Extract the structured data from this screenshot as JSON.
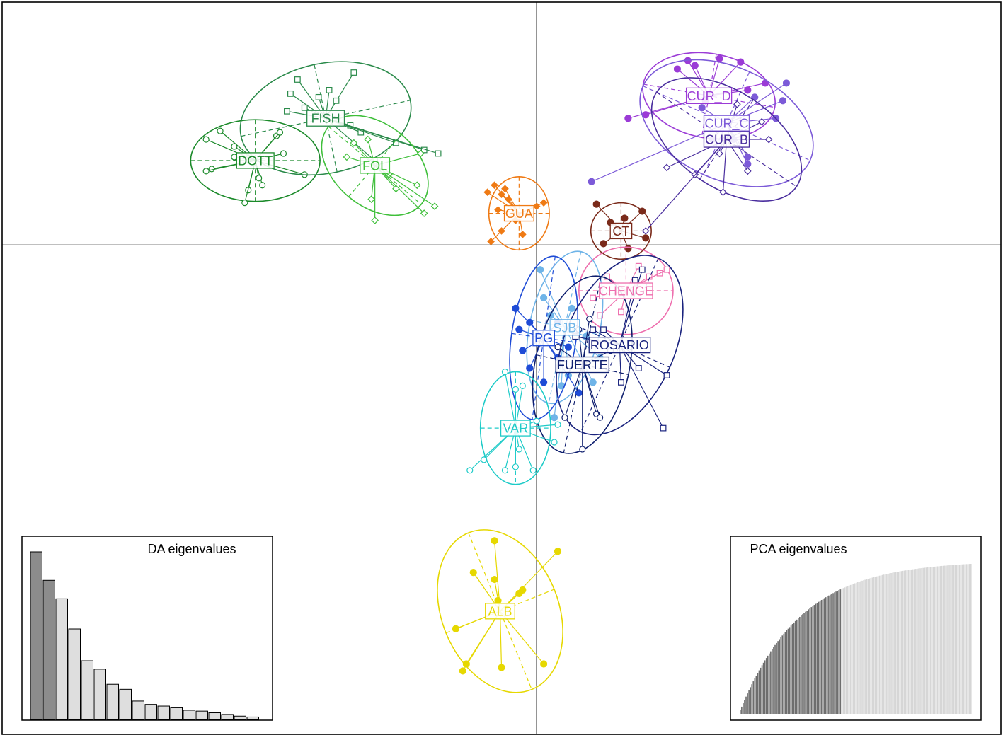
{
  "chart_data": {
    "type": "scatter",
    "title": "",
    "xlabel": "",
    "ylabel": "",
    "xlim": [
      -7.6,
      6.6
    ],
    "ylim": [
      -6.95,
      3.45
    ],
    "axes_lines_at": [
      0,
      0
    ],
    "grid": false,
    "groups": [
      {
        "name": "DOTT",
        "color": "#1b8a2a",
        "marker": "circle-open",
        "center": [
          -4.0,
          1.2
        ],
        "ellipse": {
          "rx": 0.92,
          "ry": 0.58,
          "angle": 0
        },
        "points": [
          [
            -4.5,
            1.62
          ],
          [
            -4.7,
            1.5
          ],
          [
            -3.7,
            1.55
          ],
          [
            -4.3,
            1.25
          ],
          [
            -4.62,
            1.08
          ],
          [
            -4.7,
            1.05
          ],
          [
            -3.6,
            1.3
          ],
          [
            -3.3,
            1.0
          ],
          [
            -3.9,
            0.85
          ],
          [
            -4.1,
            0.78
          ],
          [
            -4.15,
            0.6
          ],
          [
            -3.65,
            1.6
          ],
          [
            -4.3,
            1.4
          ],
          [
            -3.95,
            0.95
          ]
        ]
      },
      {
        "name": "FISH",
        "color": "#2a8a4a",
        "marker": "square-open",
        "center": [
          -3.0,
          1.8
        ],
        "ellipse": {
          "rx": 1.23,
          "ry": 0.78,
          "angle": 12
        },
        "points": [
          [
            -3.4,
            2.35
          ],
          [
            -2.6,
            2.45
          ],
          [
            -3.5,
            2.15
          ],
          [
            -2.85,
            2.05
          ],
          [
            -2.95,
            2.2
          ],
          [
            -3.3,
            1.95
          ],
          [
            -2.5,
            1.6
          ],
          [
            -2.65,
            1.7
          ],
          [
            -3.55,
            1.9
          ],
          [
            -2.0,
            1.45
          ],
          [
            -1.6,
            1.35
          ],
          [
            -1.4,
            1.3
          ],
          [
            -2.3,
            1.2
          ],
          [
            -3.1,
            2.1
          ]
        ]
      },
      {
        "name": "FOL",
        "color": "#3fbf3a",
        "marker": "diamond-open",
        "center": [
          -2.3,
          1.13
        ],
        "ellipse": {
          "rx": 0.86,
          "ry": 0.58,
          "angle": -40
        },
        "points": [
          [
            -2.1,
            1.0
          ],
          [
            -1.7,
            0.85
          ],
          [
            -2.35,
            0.65
          ],
          [
            -2.3,
            0.35
          ],
          [
            -1.6,
            0.45
          ],
          [
            -1.45,
            0.55
          ],
          [
            -1.65,
            1.3
          ],
          [
            -2.6,
            1.45
          ],
          [
            -2.4,
            1.5
          ],
          [
            -2.0,
            0.8
          ],
          [
            -2.7,
            1.25
          ]
        ]
      },
      {
        "name": "GUA",
        "color": "#ef7a14",
        "marker": "diamond-solid",
        "center": [
          -0.25,
          0.45
        ],
        "ellipse": {
          "rx": 0.43,
          "ry": 0.52,
          "angle": 0
        },
        "points": [
          [
            -0.6,
            0.85
          ],
          [
            -0.45,
            0.8
          ],
          [
            -0.5,
            0.72
          ],
          [
            -0.4,
            0.65
          ],
          [
            -0.7,
            0.75
          ],
          [
            0.0,
            0.55
          ],
          [
            0.1,
            0.6
          ],
          [
            -0.5,
            0.2
          ],
          [
            -0.2,
            0.15
          ],
          [
            -0.65,
            0.05
          ],
          [
            -0.3,
            0.35
          ],
          [
            -0.55,
            0.5
          ]
        ]
      },
      {
        "name": "CT",
        "color": "#7a2a1a",
        "marker": "circle-solid",
        "center": [
          1.2,
          0.2
        ],
        "ellipse": {
          "rx": 0.43,
          "ry": 0.4,
          "angle": 0
        },
        "points": [
          [
            0.85,
            0.58
          ],
          [
            1.5,
            0.48
          ],
          [
            1.25,
            0.38
          ],
          [
            0.95,
            0.02
          ],
          [
            1.05,
            0.32
          ],
          [
            1.55,
            0.1
          ],
          [
            1.3,
            -0.05
          ]
        ]
      },
      {
        "name": "CHENGE",
        "color": "#ee6fae",
        "marker": "square-open",
        "center": [
          1.27,
          -0.65
        ],
        "ellipse": {
          "rx": 0.67,
          "ry": 0.62,
          "angle": 0
        },
        "points": [
          [
            1.45,
            -0.3
          ],
          [
            1.75,
            -0.4
          ],
          [
            1.6,
            -0.45
          ],
          [
            1.0,
            -0.45
          ],
          [
            0.8,
            -0.75
          ],
          [
            1.85,
            -0.35
          ],
          [
            1.2,
            -0.95
          ],
          [
            0.9,
            -1.0
          ]
        ]
      },
      {
        "name": "SJB",
        "color": "#6fb4e8",
        "marker": "circle-solid",
        "center": [
          0.4,
          -1.17
        ],
        "ellipse": {
          "rx": 0.5,
          "ry": 1.1,
          "angle": -12
        },
        "points": [
          [
            0.05,
            -0.35
          ],
          [
            0.1,
            -0.75
          ],
          [
            0.5,
            -0.9
          ],
          [
            0.2,
            -1.0
          ],
          [
            0.7,
            -1.3
          ],
          [
            0.45,
            -1.85
          ],
          [
            0.35,
            -2.0
          ],
          [
            0.9,
            -1.6
          ],
          [
            0.8,
            -1.95
          ],
          [
            0.25,
            -2.45
          ]
        ]
      },
      {
        "name": "PG",
        "color": "#1e4bd6",
        "marker": "circle-solid",
        "center": [
          0.1,
          -1.32
        ],
        "ellipse": {
          "rx": 0.46,
          "ry": 1.17,
          "angle": -8
        },
        "points": [
          [
            -0.3,
            -0.9
          ],
          [
            -0.1,
            -1.1
          ],
          [
            -0.2,
            -1.5
          ],
          [
            -0.1,
            -1.75
          ],
          [
            0.3,
            -1.6
          ],
          [
            0.45,
            -1.45
          ],
          [
            0.6,
            -2.1
          ],
          [
            0.1,
            -1.95
          ],
          [
            0.3,
            -1.1
          ],
          [
            -0.25,
            -1.2
          ]
        ]
      },
      {
        "name": "ROSARIO",
        "color": "#1a237e",
        "marker": "square-open",
        "center": [
          1.18,
          -1.42
        ],
        "ellipse": {
          "rx": 0.78,
          "ry": 1.35,
          "angle": -24
        },
        "points": [
          [
            1.5,
            -0.35
          ],
          [
            1.4,
            -0.5
          ],
          [
            1.85,
            -1.85
          ],
          [
            1.45,
            -1.75
          ],
          [
            1.8,
            -2.6
          ],
          [
            0.8,
            -1.2
          ],
          [
            0.95,
            -1.2
          ],
          [
            1.2,
            -1.95
          ],
          [
            0.55,
            -1.3
          ]
        ]
      },
      {
        "name": "FUERTE",
        "color": "#0f1f6e",
        "marker": "circle-open",
        "center": [
          0.65,
          -1.7
        ],
        "ellipse": {
          "rx": 0.67,
          "ry": 1.28,
          "angle": -12
        },
        "points": [
          [
            0.6,
            -1.2
          ],
          [
            0.75,
            -1.05
          ],
          [
            0.3,
            -1.45
          ],
          [
            1.05,
            -1.5
          ],
          [
            0.85,
            -2.4
          ],
          [
            0.9,
            -2.45
          ],
          [
            0.4,
            -2.45
          ],
          [
            0.65,
            -2.9
          ]
        ]
      },
      {
        "name": "VAR",
        "color": "#1ecbc8",
        "marker": "circle-open",
        "center": [
          -0.3,
          -2.6
        ],
        "ellipse": {
          "rx": 0.5,
          "ry": 0.8,
          "angle": 0
        },
        "points": [
          [
            -0.45,
            -1.8
          ],
          [
            -0.3,
            -2.05
          ],
          [
            -0.2,
            -2.0
          ],
          [
            -0.25,
            -2.9
          ],
          [
            -0.05,
            -3.2
          ],
          [
            -0.45,
            -3.2
          ],
          [
            -0.95,
            -3.2
          ],
          [
            -0.75,
            -3.05
          ],
          [
            0.0,
            -2.5
          ],
          [
            0.25,
            -2.8
          ],
          [
            0.3,
            -2.55
          ],
          [
            -0.3,
            -3.15
          ]
        ]
      },
      {
        "name": "ALB",
        "color": "#e6d800",
        "marker": "circle-solid",
        "center": [
          -0.52,
          -5.2
        ],
        "ellipse": {
          "rx": 0.83,
          "ry": 1.2,
          "angle": 22
        },
        "points": [
          [
            -0.6,
            -4.2
          ],
          [
            0.3,
            -4.35
          ],
          [
            -0.9,
            -4.65
          ],
          [
            -0.6,
            -4.75
          ],
          [
            -0.25,
            -4.95
          ],
          [
            -0.55,
            -5.05
          ],
          [
            -1.15,
            -5.45
          ],
          [
            -1.0,
            -5.95
          ],
          [
            -1.05,
            -6.05
          ],
          [
            -0.5,
            -6.0
          ],
          [
            0.1,
            -5.95
          ],
          [
            -0.2,
            -4.9
          ]
        ]
      },
      {
        "name": "CUR_D",
        "color": "#9b3bd6",
        "marker": "circle-solid",
        "center": [
          2.45,
          2.12
        ],
        "ellipse": {
          "rx": 0.95,
          "ry": 0.6,
          "angle": -10
        },
        "points": [
          [
            2.0,
            2.5
          ],
          [
            2.25,
            2.55
          ],
          [
            2.6,
            2.65
          ],
          [
            2.9,
            2.6
          ],
          [
            2.15,
            2.62
          ],
          [
            1.3,
            1.8
          ],
          [
            1.55,
            1.85
          ],
          [
            3.25,
            2.3
          ],
          [
            2.4,
            2.05
          ],
          [
            3.0,
            2.2
          ]
        ]
      },
      {
        "name": "CUR_C",
        "color": "#7c5ad8",
        "marker": "circle-solid",
        "center": [
          2.7,
          1.73
        ],
        "ellipse": {
          "rx": 1.3,
          "ry": 0.8,
          "angle": -24
        },
        "points": [
          [
            3.55,
            2.3
          ],
          [
            3.1,
            2.1
          ],
          [
            3.5,
            2.05
          ],
          [
            3.4,
            1.8
          ],
          [
            3.0,
            1.15
          ],
          [
            2.35,
            1.95
          ],
          [
            2.8,
            1.5
          ],
          [
            0.78,
            0.9
          ],
          [
            3.0,
            1.25
          ],
          [
            2.5,
            1.5
          ]
        ]
      },
      {
        "name": "CUR_B",
        "color": "#4a2e9e",
        "marker": "diamond-open",
        "center": [
          2.7,
          1.5
        ],
        "ellipse": {
          "rx": 1.2,
          "ry": 0.68,
          "angle": -34
        },
        "points": [
          [
            2.85,
            2.0
          ],
          [
            3.2,
            1.75
          ],
          [
            3.0,
            1.05
          ],
          [
            2.65,
            0.75
          ],
          [
            2.25,
            1.0
          ],
          [
            1.85,
            1.1
          ],
          [
            1.55,
            0.2
          ],
          [
            2.6,
            1.3
          ],
          [
            3.3,
            1.5
          ]
        ]
      }
    ],
    "insets": [
      {
        "title": "DA eigenvalues",
        "type": "bar",
        "retained": 2,
        "values": [
          1.0,
          0.83,
          0.72,
          0.54,
          0.35,
          0.3,
          0.21,
          0.18,
          0.11,
          0.09,
          0.08,
          0.07,
          0.055,
          0.05,
          0.04,
          0.03,
          0.02,
          0.015
        ],
        "colors": {
          "retained": "#8c8c8c",
          "other": "#dedede",
          "outline": "#000000"
        }
      },
      {
        "title": "PCA eigenvalues",
        "type": "bar",
        "n_bars": 160,
        "retained": 70,
        "colors": {
          "retained": "#6e6e6e",
          "other": "#d6d6d6"
        }
      }
    ]
  }
}
